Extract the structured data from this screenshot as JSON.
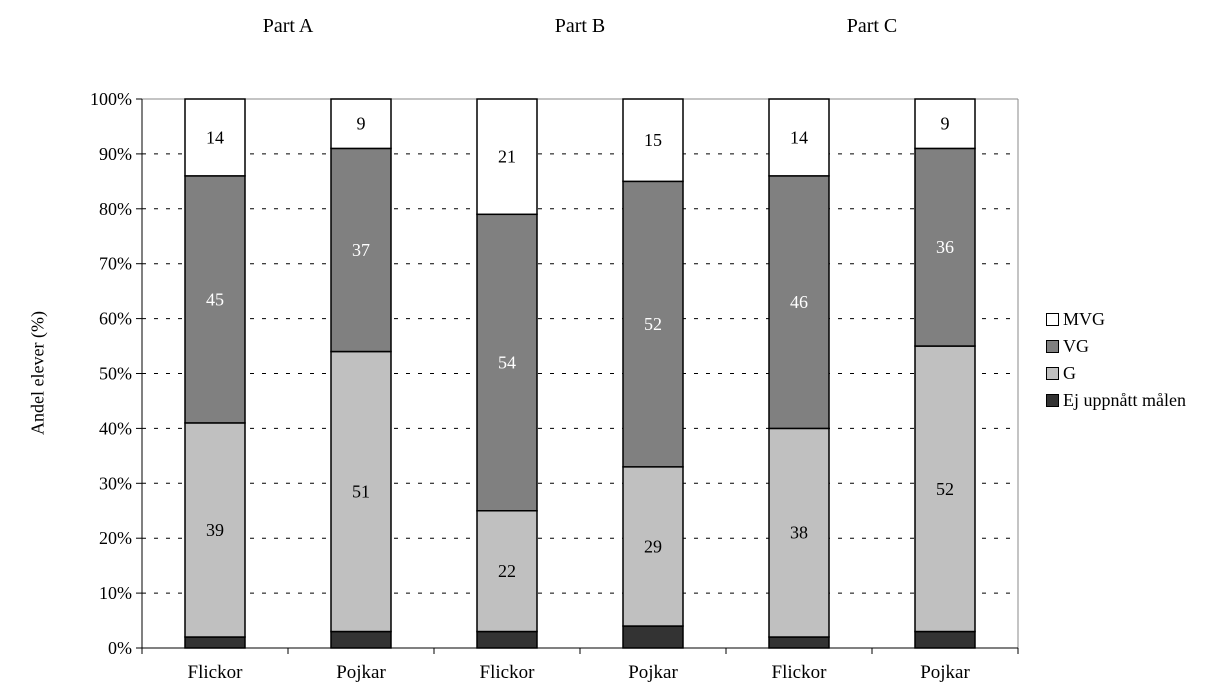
{
  "chart_data": {
    "type": "bar",
    "stacked": true,
    "percent_stacked": true,
    "groups": [
      {
        "title": "Part A",
        "categories": [
          "Flickor",
          "Pojkar"
        ]
      },
      {
        "title": "Part B",
        "categories": [
          "Flickor",
          "Pojkar"
        ]
      },
      {
        "title": "Part C",
        "categories": [
          "Flickor",
          "Pojkar"
        ]
      }
    ],
    "categories": [
      "Flickor",
      "Pojkar",
      "Flickor",
      "Pojkar",
      "Flickor",
      "Pojkar"
    ],
    "series": [
      {
        "name": "Ej uppnått målen",
        "color": "#333333",
        "label_color": "#ffffff",
        "values": [
          2,
          3,
          3,
          4,
          2,
          3
        ]
      },
      {
        "name": "G",
        "color": "#c0c0c0",
        "label_color": "#000000",
        "values": [
          39,
          51,
          22,
          29,
          38,
          52
        ]
      },
      {
        "name": "VG",
        "color": "#808080",
        "label_color": "#ffffff",
        "values": [
          45,
          37,
          54,
          52,
          46,
          36
        ]
      },
      {
        "name": "MVG",
        "color": "#ffffff",
        "label_color": "#000000",
        "values": [
          14,
          9,
          21,
          15,
          14,
          9
        ]
      }
    ],
    "legend_order": [
      "MVG",
      "VG",
      "G",
      "Ej uppnått målen"
    ],
    "legend_position": "right",
    "ylabel": "Andel elever (%)",
    "yticks": [
      "0%",
      "10%",
      "20%",
      "30%",
      "40%",
      "50%",
      "60%",
      "70%",
      "80%",
      "90%",
      "100%"
    ],
    "ylim": [
      0,
      100
    ],
    "grid": "dashed-horizontal"
  }
}
